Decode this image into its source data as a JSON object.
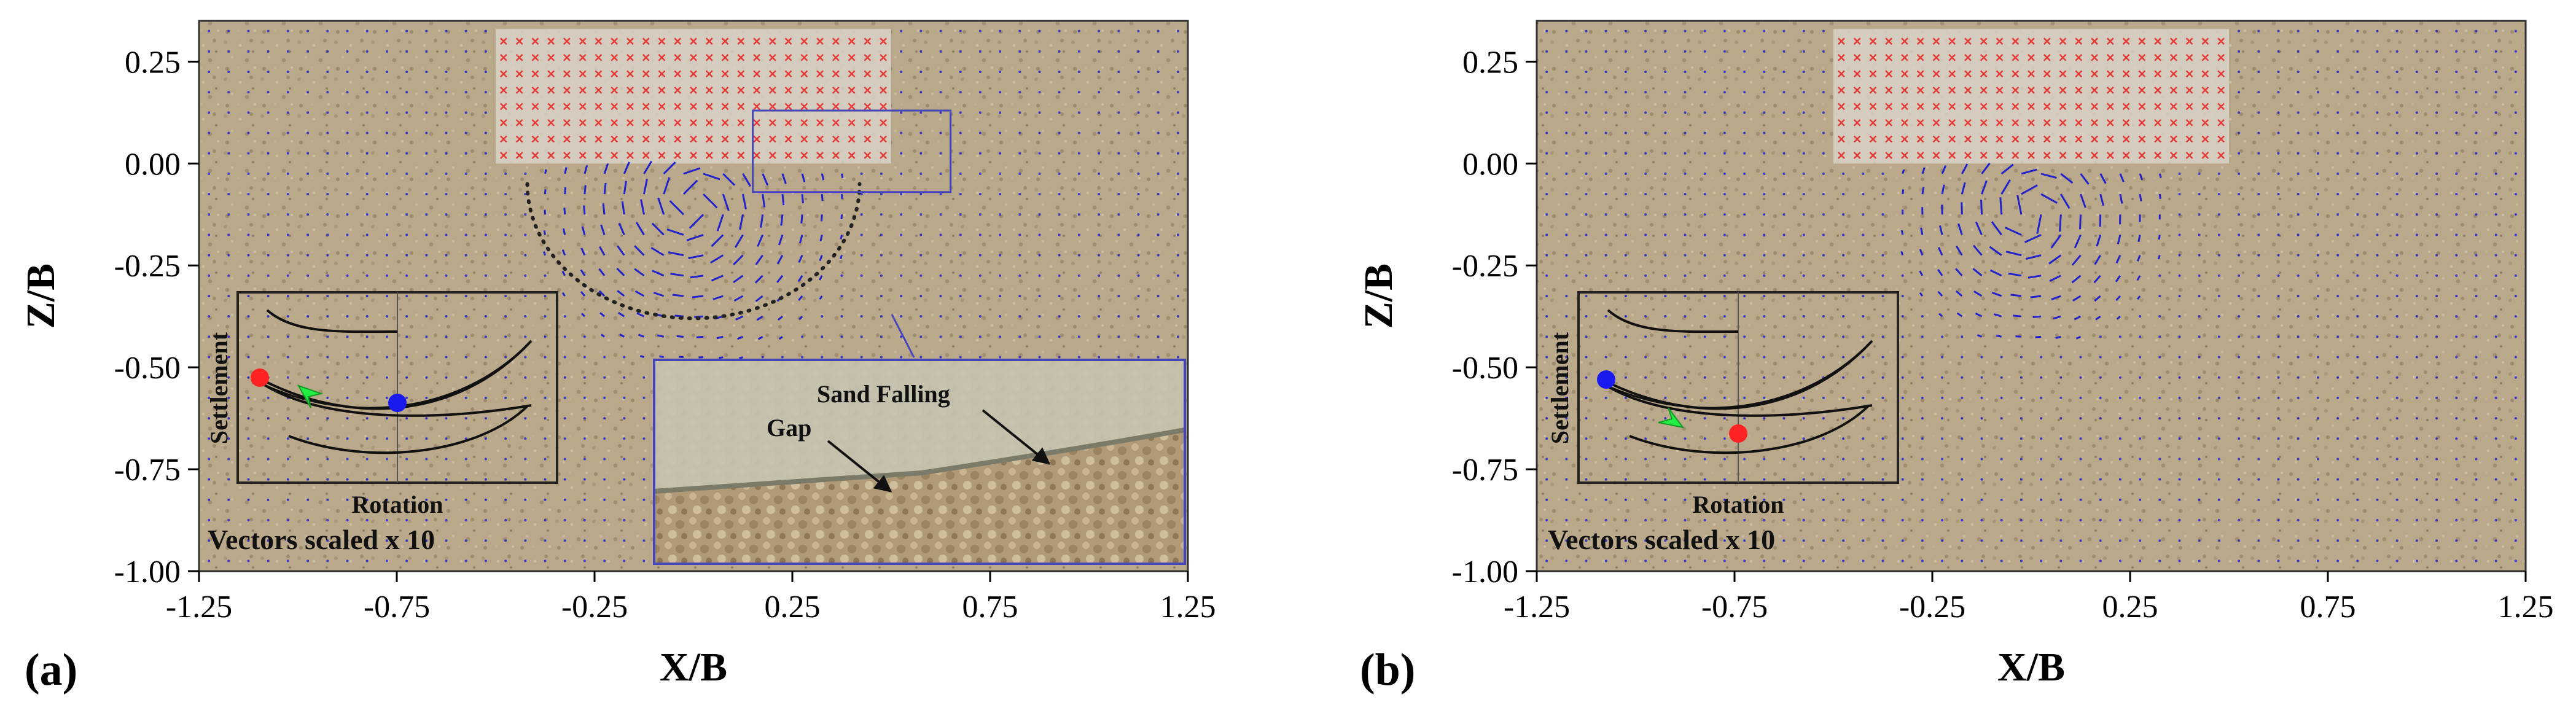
{
  "chart_data": [
    {
      "type": "scatter",
      "panel_label": "(a)",
      "xlabel": "X/B",
      "ylabel": "Z/B",
      "xlim": [
        -1.25,
        1.25
      ],
      "ylim": [
        -1.0,
        0.35
      ],
      "xticks": [
        "-1.25",
        "-0.75",
        "-0.25",
        "0.25",
        "0.75",
        "1.25"
      ],
      "yticks": [
        "0.25",
        "0.00",
        "-0.25",
        "-0.50",
        "-0.75",
        "-1.00"
      ],
      "footing": {
        "x": [
          -0.5,
          0.5
        ],
        "z": [
          0.0,
          0.33
        ],
        "marker": "x",
        "color": "#e53935"
      },
      "vector_field": {
        "color": "#2222cc",
        "scale_note": "Vectors scaled x 10",
        "center": [
          0.0,
          -0.1
        ],
        "radius": 0.4
      },
      "failure_arc": {
        "center_x": 0.0,
        "center_z": -0.05,
        "radius_x": 0.42,
        "radius_z": 0.33,
        "style": "dotted"
      },
      "zoom_window": {
        "x": [
          0.15,
          0.65
        ],
        "z": [
          -0.07,
          0.13
        ]
      },
      "zoom_inset": {
        "labels": [
          "Sand Falling",
          "Gap"
        ]
      },
      "inset": {
        "xlabel": "Rotation",
        "ylabel": "Settlement",
        "arrow": "left-to-right",
        "red_point": "start",
        "blue_point": "end"
      },
      "note": "Vectors scaled x 10"
    },
    {
      "type": "scatter",
      "panel_label": "(b)",
      "xlabel": "X/B",
      "ylabel": "Z/B",
      "xlim": [
        -1.25,
        1.25
      ],
      "ylim": [
        -1.0,
        0.35
      ],
      "xticks": [
        "-1.25",
        "-0.75",
        "-0.25",
        "0.25",
        "0.75",
        "1.25"
      ],
      "yticks": [
        "0.25",
        "0.00",
        "-0.25",
        "-0.50",
        "-0.75",
        "-1.00"
      ],
      "footing": {
        "x": [
          -0.5,
          0.5
        ],
        "z": [
          0.0,
          0.33
        ],
        "marker": "x",
        "color": "#e53935"
      },
      "vector_field": {
        "color": "#2222cc",
        "scale_note": "Vectors scaled x 10",
        "center": [
          0.0,
          -0.12
        ],
        "radius": 0.35
      },
      "inset": {
        "xlabel": "Rotation",
        "ylabel": "Settlement",
        "arrow": "right-to-left",
        "blue_point": "start",
        "red_point": "end"
      },
      "note": "Vectors scaled x 10"
    }
  ],
  "colors": {
    "sand": "#b9a98a",
    "footing": "#d8d4c8",
    "marker_red": "#e53935",
    "vector_blue": "#2222cc",
    "inset_red": "#ff2222",
    "inset_blue": "#1a1aee",
    "arrow_green": "#22ee44"
  }
}
